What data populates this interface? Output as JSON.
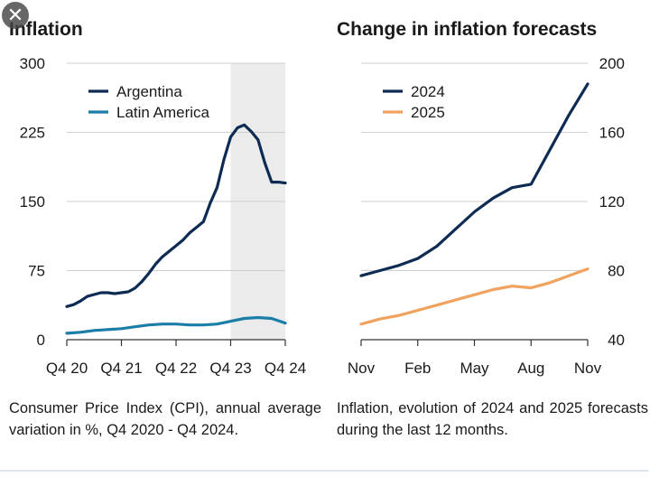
{
  "close_icon_glyph": "✕",
  "chart_data": [
    {
      "type": "line",
      "title": "Inflation",
      "caption": "Consumer Price Index (CPI), annual average variation in %, Q4 2020 - Q4 2024.",
      "xlabel": "",
      "ylabel": "",
      "ylim": [
        0,
        300
      ],
      "y_ticks": [
        0,
        75,
        150,
        225,
        300
      ],
      "x_ticks": [
        "Q4 20",
        "Q4 21",
        "Q4 22",
        "Q4 23",
        "Q4 24"
      ],
      "x_tick_positions": [
        0,
        4,
        8,
        12,
        16
      ],
      "x_range": [
        0,
        16
      ],
      "shaded_region": {
        "from": 12,
        "to": 16,
        "color": "#ebebeb"
      },
      "legend_position": "top-left",
      "series": [
        {
          "name": "Argentina",
          "color": "#0d2b53",
          "x": [
            0,
            0.5,
            1,
            1.5,
            2,
            2.5,
            3,
            3.5,
            4,
            4.5,
            5,
            5.5,
            6,
            6.5,
            7,
            7.5,
            8,
            8.5,
            9,
            9.5,
            10,
            10.5,
            11,
            11.5,
            12,
            12.5,
            13,
            13.5,
            14,
            14.5,
            15,
            15.5,
            16
          ],
          "values": [
            36,
            38,
            42,
            47,
            49,
            51,
            51,
            50,
            51,
            52,
            56,
            63,
            72,
            82,
            90,
            96,
            102,
            108,
            116,
            122,
            128,
            148,
            165,
            195,
            220,
            230,
            233,
            226,
            217,
            192,
            171,
            171,
            170
          ]
        },
        {
          "name": "Latin America",
          "color": "#1a7ea8",
          "x": [
            0,
            1,
            2,
            3,
            4,
            5,
            6,
            7,
            8,
            9,
            10,
            11,
            12,
            13,
            14,
            15,
            16
          ],
          "values": [
            7,
            8,
            10,
            11,
            12,
            14,
            16,
            17,
            17,
            16,
            16,
            17,
            20,
            23,
            24,
            23,
            18
          ]
        }
      ]
    },
    {
      "type": "line",
      "title": "Change in inflation forecasts",
      "caption": "Inflation, evolution of 2024 and 2025 forecasts during the last 12 months.",
      "xlabel": "",
      "ylabel": "",
      "ylim": [
        40,
        200
      ],
      "y_ticks": [
        40,
        80,
        120,
        160,
        200
      ],
      "x_ticks": [
        "Nov",
        "Feb",
        "May",
        "Aug",
        "Nov"
      ],
      "x_tick_positions": [
        0,
        3,
        6,
        9,
        12
      ],
      "x_range": [
        0,
        12
      ],
      "legend_position": "top-left",
      "series": [
        {
          "name": "2024",
          "color": "#0d2b53",
          "x": [
            0,
            1,
            2,
            3,
            4,
            5,
            6,
            7,
            8,
            9,
            10,
            11,
            12
          ],
          "values": [
            77,
            80,
            83,
            87,
            94,
            104,
            114,
            122,
            128,
            130,
            150,
            170,
            188
          ]
        },
        {
          "name": "2025",
          "color": "#f0a25e",
          "x": [
            0,
            1,
            2,
            3,
            4,
            5,
            6,
            7,
            8,
            9,
            10,
            11,
            12
          ],
          "values": [
            49,
            52,
            54,
            57,
            60,
            63,
            66,
            69,
            71,
            70,
            73,
            77,
            81
          ]
        }
      ]
    }
  ]
}
